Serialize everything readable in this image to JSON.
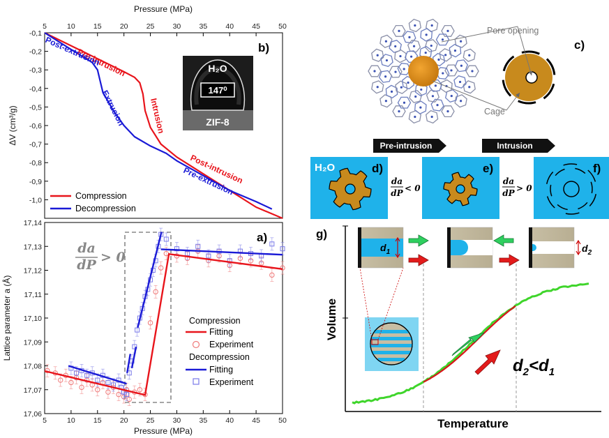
{
  "figure": {
    "panels": {
      "a": "a)",
      "b": "b)",
      "c": "c)",
      "d": "d)",
      "e": "e)",
      "f": "f)",
      "g": "g)"
    }
  },
  "chart_data": [
    {
      "type": "line",
      "panel": "b",
      "xlabel_top": "Pressure (MPa)",
      "ylabel": "ΔV (cm³/g)",
      "xlim": [
        5,
        50
      ],
      "ylim": [
        -1.1,
        -0.1
      ],
      "xticks": [
        5,
        10,
        15,
        20,
        25,
        30,
        35,
        40,
        45,
        50
      ],
      "yticks": [
        -0.1,
        -0.2,
        -0.3,
        -0.4,
        -0.5,
        -0.6,
        -0.7,
        -0.8,
        -0.9,
        -1.0
      ],
      "ytick_labels": [
        "-0,1",
        "-0,2",
        "-0,3",
        "-0,4",
        "-0,5",
        "-0,6",
        "-0,7",
        "-0,8",
        "-0,9",
        "-1,0"
      ],
      "series": [
        {
          "name": "Compression",
          "color": "#e8141b",
          "x": [
            5,
            10,
            15,
            20,
            22,
            23,
            23.6,
            24,
            25,
            27,
            30,
            35,
            40,
            45,
            50
          ],
          "y": [
            -0.1,
            -0.17,
            -0.24,
            -0.31,
            -0.34,
            -0.37,
            -0.43,
            -0.52,
            -0.61,
            -0.7,
            -0.77,
            -0.86,
            -0.95,
            -1.04,
            -1.13
          ]
        },
        {
          "name": "Decompression",
          "color": "#1a1ad6",
          "x": [
            5,
            10,
            14,
            15,
            15.5,
            16,
            18,
            20,
            22,
            25,
            28,
            30,
            35,
            40,
            45,
            48
          ],
          "y": [
            -0.1,
            -0.19,
            -0.26,
            -0.3,
            -0.36,
            -0.42,
            -0.52,
            -0.6,
            -0.66,
            -0.71,
            -0.75,
            -0.79,
            -0.87,
            -0.95,
            -1.01,
            -1.05
          ]
        }
      ],
      "annotations": [
        {
          "text": "Pre-intrusion",
          "color": "#e8141b"
        },
        {
          "text": "Post-extrusion",
          "color": "#1a1ad6"
        },
        {
          "text": "Intrusion",
          "color": "#e8141b"
        },
        {
          "text": "Extrusion",
          "color": "#1a1ad6"
        },
        {
          "text": "Post-intrusion",
          "color": "#e8141b"
        },
        {
          "text": "Pre-extrusion",
          "color": "#1a1ad6"
        }
      ],
      "inset": {
        "liquid": "H₂O",
        "angle": "147⁰",
        "substrate": "ZIF-8"
      },
      "legend_position": "bottom-left"
    },
    {
      "type": "scatter",
      "panel": "a",
      "xlabel": "Pressure (MPa)",
      "ylabel": "Lattice parameter a (Å)",
      "xlim": [
        5,
        50
      ],
      "ylim": [
        17.06,
        17.14
      ],
      "xticks": [
        5,
        10,
        15,
        20,
        25,
        30,
        35,
        40,
        45,
        50
      ],
      "yticks": [
        17.06,
        17.07,
        17.08,
        17.09,
        17.1,
        17.11,
        17.12,
        17.13,
        17.14
      ],
      "ytick_labels": [
        "17,06",
        "17,07",
        "17,08",
        "17,09",
        "17,10",
        "17,11",
        "17,12",
        "17,13",
        "17,14"
      ],
      "fit_lines": [
        {
          "group": "Compression",
          "color": "#e8141b",
          "x": [
            5,
            24,
            28.5,
            50
          ],
          "y": [
            17.0778,
            17.0678,
            17.1268,
            17.1205
          ]
        },
        {
          "group": "Decompression",
          "color": "#1a1ad6",
          "x": [
            9.5,
            20.5
          ],
          "y": [
            17.08,
            17.0725
          ]
        },
        {
          "group": "Decompression",
          "color": "#1a1ad6",
          "x": [
            20.6,
            21.2
          ],
          "y": [
            17.077,
            17.085
          ]
        },
        {
          "group": "Decompression",
          "color": "#1a1ad6",
          "x": [
            21.5,
            22.3
          ],
          "y": [
            17.079,
            17.088
          ]
        },
        {
          "group": "Decompression",
          "color": "#1a1ad6",
          "x": [
            22.6,
            27.1
          ],
          "y": [
            17.096,
            17.136
          ]
        },
        {
          "group": "Decompression",
          "color": "#1a1ad6",
          "x": [
            27,
            50
          ],
          "y": [
            17.1288,
            17.1265
          ]
        }
      ],
      "experiment": [
        {
          "group": "Compression",
          "marker": "circle",
          "color": "#ef7a7a",
          "x": [
            5.5,
            7,
            8,
            9,
            10,
            11,
            12,
            13,
            14,
            15,
            16,
            17,
            18,
            19,
            20,
            20.5,
            21,
            22,
            23,
            24,
            25,
            26,
            27,
            28,
            30,
            32,
            34,
            36,
            38,
            40,
            42,
            44,
            46,
            48,
            50
          ],
          "y": [
            17.078,
            17.077,
            17.074,
            17.076,
            17.073,
            17.075,
            17.071,
            17.074,
            17.072,
            17.07,
            17.073,
            17.069,
            17.071,
            17.068,
            17.067,
            17.07,
            17.066,
            17.069,
            17.07,
            17.068,
            17.098,
            17.111,
            17.121,
            17.127,
            17.126,
            17.125,
            17.128,
            17.124,
            17.126,
            17.122,
            17.125,
            17.124,
            17.123,
            17.118,
            17.121
          ]
        },
        {
          "group": "Decompression",
          "marker": "square",
          "color": "#7a7ae8",
          "x": [
            10,
            11,
            12,
            13,
            14,
            15,
            16,
            17,
            18,
            19,
            19.5,
            20,
            20.5,
            21,
            21.5,
            22,
            22.5,
            23,
            23.5,
            24,
            24.5,
            25,
            25.5,
            26,
            26.5,
            27,
            28,
            30,
            32,
            34,
            36,
            38,
            40,
            42,
            44,
            46,
            48,
            50
          ],
          "y": [
            17.079,
            17.077,
            17.078,
            17.076,
            17.077,
            17.074,
            17.076,
            17.073,
            17.072,
            17.074,
            17.071,
            17.069,
            17.068,
            17.077,
            17.082,
            17.088,
            17.095,
            17.1,
            17.104,
            17.109,
            17.112,
            17.116,
            17.12,
            17.124,
            17.13,
            17.135,
            17.133,
            17.129,
            17.127,
            17.13,
            17.126,
            17.128,
            17.124,
            17.128,
            17.127,
            17.126,
            17.131,
            17.129
          ]
        }
      ],
      "annotation": {
        "num": "da",
        "den": "dP",
        "rel": "> 0"
      },
      "legend": {
        "compression": "Compression",
        "decompression": "Decompression",
        "fitting": "Fitting",
        "experiment": "Experiment"
      },
      "legend_position": "right"
    }
  ],
  "panel_c": {
    "pore_opening": "Pore opening",
    "cage": "Cage"
  },
  "stages": {
    "pre_intrusion": "Pre-intrusion",
    "intrusion": "Intrusion"
  },
  "panel_d": {
    "liquid": "H₂O"
  },
  "derivs": {
    "neg": {
      "num": "da",
      "den": "dP",
      "rel": "< 0"
    },
    "pos": {
      "num": "da",
      "den": "dP",
      "rel": "> 0"
    }
  },
  "panel_g": {
    "xlabel": "Temperature",
    "ylabel": "Volume",
    "d1": "d",
    "d1_sub": "1",
    "d2": "d",
    "d2_sub": "2",
    "relation": "d",
    "relation_sub1": "2",
    "relation_mid": "<d",
    "relation_sub2": "1"
  }
}
